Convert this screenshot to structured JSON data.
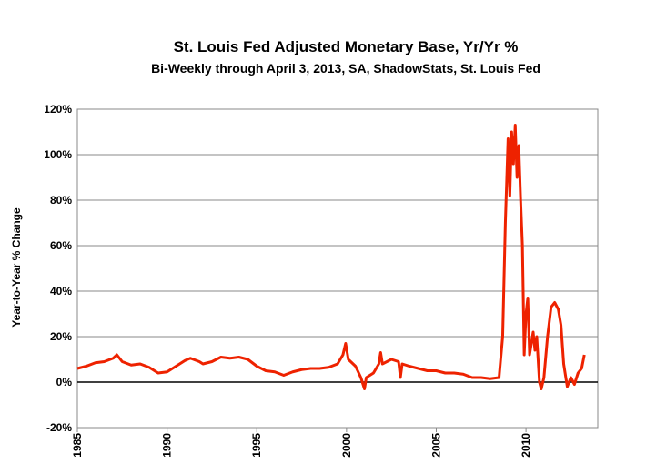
{
  "chart_data": {
    "type": "line",
    "title": "St. Louis Fed Adjusted Monetary Base, Yr/Yr %",
    "subtitle": "Bi-Weekly through April 3, 2013, SA, ShadowStats, St. Louis Fed",
    "y_label": "Year-to-Year % Change",
    "color": "#ee2200",
    "grid": true,
    "xlim": [
      1985,
      2014
    ],
    "xticks": [
      1985,
      1990,
      1995,
      2000,
      2005,
      2010
    ],
    "ylim": [
      -20,
      120
    ],
    "yticks": [
      {
        "value": -20,
        "label": "-20%"
      },
      {
        "value": 0,
        "label": "0%"
      },
      {
        "value": 20,
        "label": "20%"
      },
      {
        "value": 40,
        "label": "40%"
      },
      {
        "value": 60,
        "label": "60%"
      },
      {
        "value": 80,
        "label": "80%"
      },
      {
        "value": 100,
        "label": "100%"
      },
      {
        "value": 120,
        "label": "120%"
      }
    ],
    "x": [
      1985,
      1985.5,
      1986,
      1986.5,
      1987,
      1987.2,
      1987.5,
      1988,
      1988.5,
      1989,
      1989.5,
      1990,
      1990.5,
      1991,
      1991.3,
      1991.8,
      1992,
      1992.5,
      1993,
      1993.5,
      1994,
      1994.5,
      1995,
      1995.5,
      1996,
      1996.5,
      1997,
      1997.5,
      1998,
      1998.5,
      1999,
      1999.5,
      1999.8,
      1999.95,
      2000.1,
      2000.5,
      2000.8,
      2001,
      2001.1,
      2001.5,
      2001.8,
      2001.9,
      2002,
      2002.5,
      2002.9,
      2003,
      2003.1,
      2003.5,
      2004,
      2004.5,
      2005,
      2005.5,
      2006,
      2006.5,
      2007,
      2007.5,
      2008,
      2008.5,
      2008.7,
      2008.85,
      2009,
      2009.1,
      2009.2,
      2009.3,
      2009.4,
      2009.5,
      2009.6,
      2009.7,
      2009.8,
      2009.9,
      2010,
      2010.1,
      2010.2,
      2010.4,
      2010.5,
      2010.6,
      2010.75,
      2010.85,
      2011,
      2011.2,
      2011.4,
      2011.6,
      2011.8,
      2011.95,
      2012.1,
      2012.3,
      2012.5,
      2012.7,
      2012.9,
      2013.1,
      2013.25
    ],
    "values": [
      6,
      7,
      8.5,
      9,
      10.5,
      12,
      9,
      7.5,
      8,
      6.5,
      4,
      4.5,
      7,
      9.5,
      10.5,
      9,
      8,
      9,
      11,
      10.5,
      11,
      10,
      7,
      5,
      4.5,
      3,
      4.5,
      5.5,
      6,
      6,
      6.5,
      8,
      12,
      17,
      10,
      7,
      2,
      -3,
      2,
      4,
      8,
      13,
      8,
      10,
      9,
      2,
      8,
      7,
      6,
      5,
      5,
      4,
      4,
      3.5,
      2,
      2,
      1.5,
      2,
      20,
      70,
      107,
      82,
      110,
      96,
      113,
      90,
      104,
      80,
      60,
      12,
      30,
      37,
      12,
      22,
      14,
      20,
      0,
      -3,
      2,
      20,
      33,
      35,
      32,
      25,
      8,
      -2,
      2,
      -1,
      4,
      6,
      12
    ]
  }
}
